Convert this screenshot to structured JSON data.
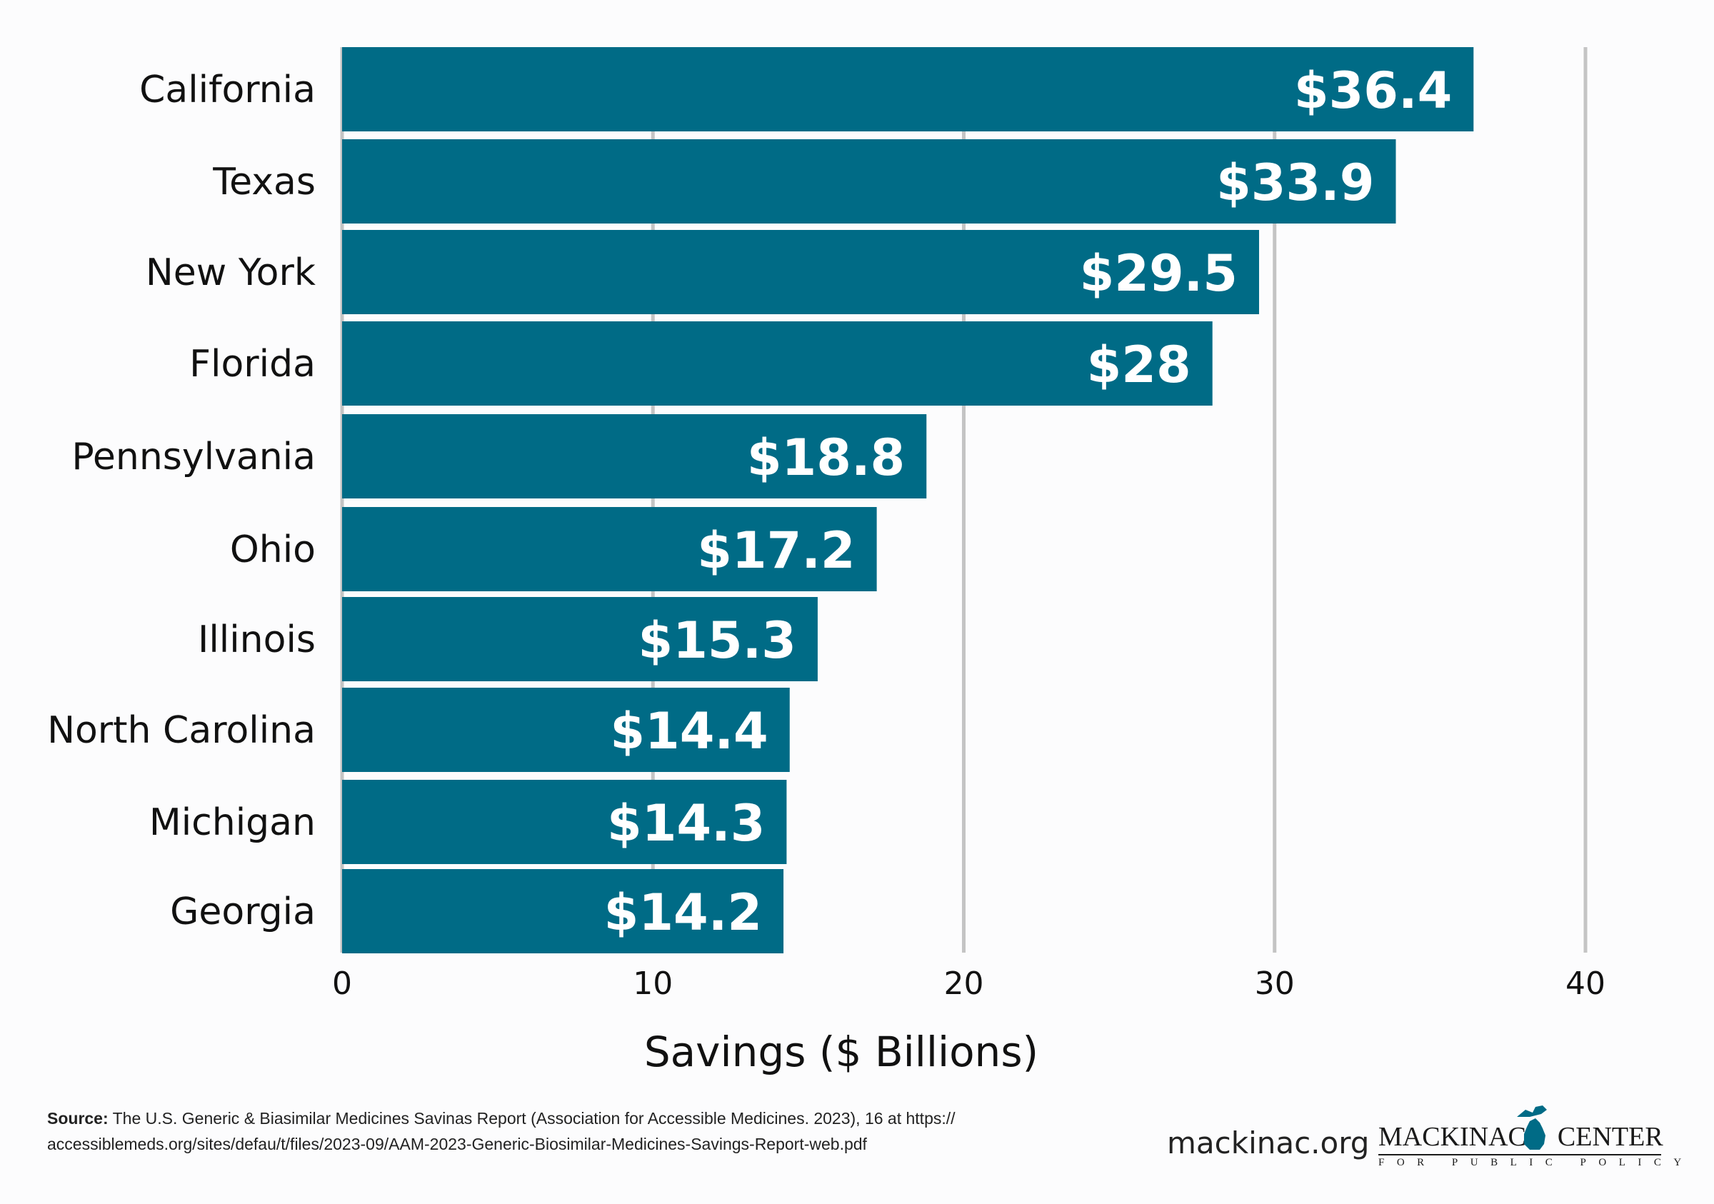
{
  "chart_data": {
    "type": "bar",
    "orientation": "horizontal",
    "categories": [
      "California",
      "Texas",
      "New York",
      "Florida",
      "Pennsylvania",
      "Ohio",
      "Illinois",
      "North Carolina",
      "Michigan",
      "Georgia"
    ],
    "values": [
      36.4,
      33.9,
      29.5,
      28,
      18.8,
      17.2,
      15.3,
      14.4,
      14.3,
      14.2
    ],
    "value_labels": [
      "$36.4",
      "$33.9",
      "$29.5",
      "$28",
      "$18.8",
      "$17.2",
      "$15.3",
      "$14.4",
      "$14.3",
      "$14.2"
    ],
    "xlabel": "Savings ($ Billions)",
    "ylabel": "",
    "xlim": [
      0,
      40
    ],
    "xticks": [
      0,
      10,
      20,
      30,
      40
    ],
    "xtick_labels": [
      "0",
      "10",
      "20",
      "30",
      "40"
    ],
    "grid": true,
    "bar_color": "#006b86",
    "grid_color": "#c4c4c4"
  },
  "footer": {
    "source_label": "Source:",
    "source_text": "The U.S. Generic & Biasimilar Medicines Savinas Report (Association for Accessible Medicines. 2023), 16 at https://",
    "source_url": "accessiblemeds.org/sites/defau/t/files/2023-09/AAM-2023-Generic-Biosimilar-Medicines-Savings-Report-web.pdf",
    "site": "mackinac.org"
  },
  "logo": {
    "name_left": "MACKINAC",
    "name_right": "CENTER",
    "tagline": "FOR PUBLIC POLICY",
    "icon": "michigan-map-icon",
    "color": "#006b86"
  }
}
